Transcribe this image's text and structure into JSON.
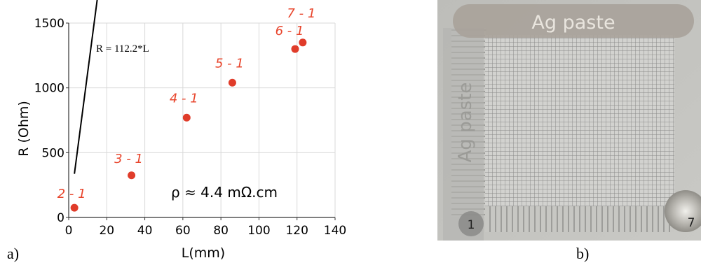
{
  "chart_data": {
    "type": "scatter",
    "xlabel": "L(mm)",
    "ylabel": "R (Ohm)",
    "xlim": [
      0,
      140
    ],
    "ylim": [
      0,
      1500
    ],
    "x_ticks": [
      "0",
      "20",
      "40",
      "60",
      "80",
      "100",
      "120",
      "140"
    ],
    "y_ticks": [
      "0",
      "500",
      "1000",
      "1500"
    ],
    "series": [
      {
        "x": [
          3,
          33,
          62,
          86,
          119,
          123
        ],
        "y": [
          75,
          325,
          770,
          1040,
          1300,
          1350
        ],
        "labels": [
          "2 - 1",
          "3 - 1",
          "4 - 1",
          "5 - 1",
          "6 - 1",
          "7 - 1"
        ]
      }
    ],
    "fit_line": {
      "slope": 112.2,
      "x_range": [
        3,
        123
      ]
    },
    "annotations": [
      "R = 112.2*L",
      "ρ ≈ 4.4 mΩ.cm"
    ],
    "grid": true,
    "colors": {
      "points": "#e03c2a",
      "point_labels": "#e8452c",
      "fit": "#000000"
    }
  },
  "panels": {
    "a": "a)",
    "b": "b)"
  },
  "photo": {
    "top_label": "Ag paste",
    "left_label": "Ag paste",
    "pad_left": "1",
    "pad_right": "7"
  }
}
